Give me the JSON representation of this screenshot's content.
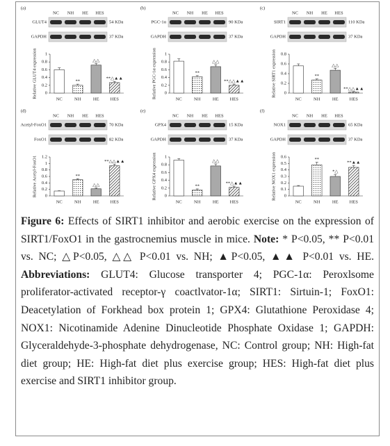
{
  "chart_data": [
    {
      "type": "bar",
      "title": "(a)",
      "categories": [
        "NC",
        "NH",
        "HE",
        "HES"
      ],
      "values": [
        0.6,
        0.2,
        0.72,
        0.27
      ],
      "errors": [
        0.05,
        0.03,
        0.04,
        0.03
      ],
      "annotations": [
        null,
        "**",
        "△△",
        "**△▲▲"
      ],
      "ylabel": "Relative GLUT4 expression",
      "ylim": [
        0,
        1
      ],
      "yticks": [
        0,
        0.2,
        0.4,
        0.6,
        0.8,
        1
      ],
      "blot": [
        {
          "label": "GLUT4",
          "size": "54 KDa"
        },
        {
          "label": "GAPDH",
          "size": "37 KDa"
        }
      ]
    },
    {
      "type": "bar",
      "title": "(b)",
      "categories": [
        "NC",
        "NH",
        "HE",
        "HES"
      ],
      "values": [
        0.82,
        0.42,
        0.68,
        0.2
      ],
      "errors": [
        0.06,
        0.03,
        0.05,
        0.03
      ],
      "annotations": [
        null,
        "**",
        "△△",
        "**△△▲▲"
      ],
      "ylabel": "Relative PGC-1α expression",
      "ylim": [
        0,
        1
      ],
      "yticks": [
        0,
        0.2,
        0.4,
        0.6,
        0.8,
        1
      ],
      "blot": [
        {
          "label": "PGC-1α",
          "size": "90 KDa"
        },
        {
          "label": "GAPDH",
          "size": "37 KDa"
        }
      ]
    },
    {
      "type": "bar",
      "title": "(c)",
      "categories": [
        "NC",
        "NH",
        "HE",
        "HES"
      ],
      "values": [
        0.56,
        0.27,
        0.47,
        0.02
      ],
      "errors": [
        0.04,
        0.02,
        0.04,
        0.01
      ],
      "annotations": [
        null,
        "**",
        "△△",
        "**△△▲▲"
      ],
      "ylabel": "Relative SIRT1 expression",
      "ylim": [
        0,
        0.8
      ],
      "yticks": [
        0,
        0.2,
        0.4,
        0.6,
        0.8
      ],
      "blot": [
        {
          "label": "SIRT1",
          "size": "110 KDa"
        },
        {
          "label": "GAPDH",
          "size": "37 KDa"
        }
      ]
    },
    {
      "type": "bar",
      "title": "(d)",
      "categories": [
        "NC",
        "NH",
        "HE",
        "HES"
      ],
      "values": [
        0.15,
        0.5,
        0.22,
        0.93
      ],
      "errors": [
        0.01,
        0.03,
        0.03,
        0.05
      ],
      "annotations": [
        null,
        "**",
        "△△",
        "**△△▲▲"
      ],
      "ylabel": "Relative Acetyl-FoxO1",
      "ylim": [
        0,
        1.2
      ],
      "yticks": [
        0,
        0.2,
        0.4,
        0.6,
        0.8,
        1,
        1.2
      ],
      "blot": [
        {
          "label": "Acetyl-FoxO1",
          "size": "70 KDa"
        },
        {
          "label": "FoxO1",
          "size": "82 KDa"
        }
      ]
    },
    {
      "type": "bar",
      "title": "(e)",
      "categories": [
        "NC",
        "NH",
        "HE",
        "HES"
      ],
      "values": [
        0.92,
        0.15,
        0.77,
        0.22
      ],
      "errors": [
        0.04,
        0.03,
        0.05,
        0.03
      ],
      "annotations": [
        null,
        "**",
        "△△",
        "**△▲▲"
      ],
      "ylabel": "Relative GPX4 expression",
      "ylim": [
        0,
        1
      ],
      "yticks": [
        0,
        0.2,
        0.4,
        0.6,
        0.8,
        1
      ],
      "blot": [
        {
          "label": "GPX4",
          "size": "15 KDa"
        },
        {
          "label": "GAPDH",
          "size": "37 KDa"
        }
      ]
    },
    {
      "type": "bar",
      "title": "(f)",
      "categories": [
        "NC",
        "NH",
        "HE",
        "HES"
      ],
      "values": [
        0.15,
        0.48,
        0.3,
        0.44
      ],
      "errors": [
        0.01,
        0.04,
        0.03,
        0.03
      ],
      "annotations": [
        null,
        "**",
        "*△",
        "**▲▲"
      ],
      "ylabel": "Relative NOX1 expression",
      "ylim": [
        0,
        0.6
      ],
      "yticks": [
        0,
        0.1,
        0.2,
        0.3,
        0.4,
        0.5,
        0.6
      ],
      "blot": [
        {
          "label": "NOX1",
          "size": "65 KDa"
        },
        {
          "label": "GAPDH",
          "size": "37 KDa"
        }
      ]
    }
  ],
  "caption": {
    "label": "Figure 6:",
    "text": "Effects of SIRT1 inhibitor and aerobic exercise on the expression of SIRT1/FoxO1 in the gastrocnemius muscle in mice.",
    "note_label": "Note:",
    "note_text": "* P<0.05, ** P<0.01 vs. NC; △P<0.05, △△ P<0.01 vs. NH; ▲P<0.05, ▲▲ P<0.01 vs. HE.",
    "abbreviations_label": "Abbreviations:",
    "abbreviations_text": "GLUT4: Glucose transporter 4; PGC-1α: Peroxlsome proliferator-activated receptor-γ coactlvator-1α; SIRT1: Sirtuin-1; FoxO1: Deacetylation of Forkhead box protein 1; GPX4: Glutathione Peroxidase 4; NOX1: Nicotinamide Adenine Dinucleotide Phosphate Oxidase 1; GAPDH: Glyceraldehyde-3-phosphate dehydrogenase, NC: Control group; NH: High-fat diet group; HE: High-fat diet plus exercise group; HES: High-fat diet plus exercise and SIRT1 inhibitor group."
  }
}
